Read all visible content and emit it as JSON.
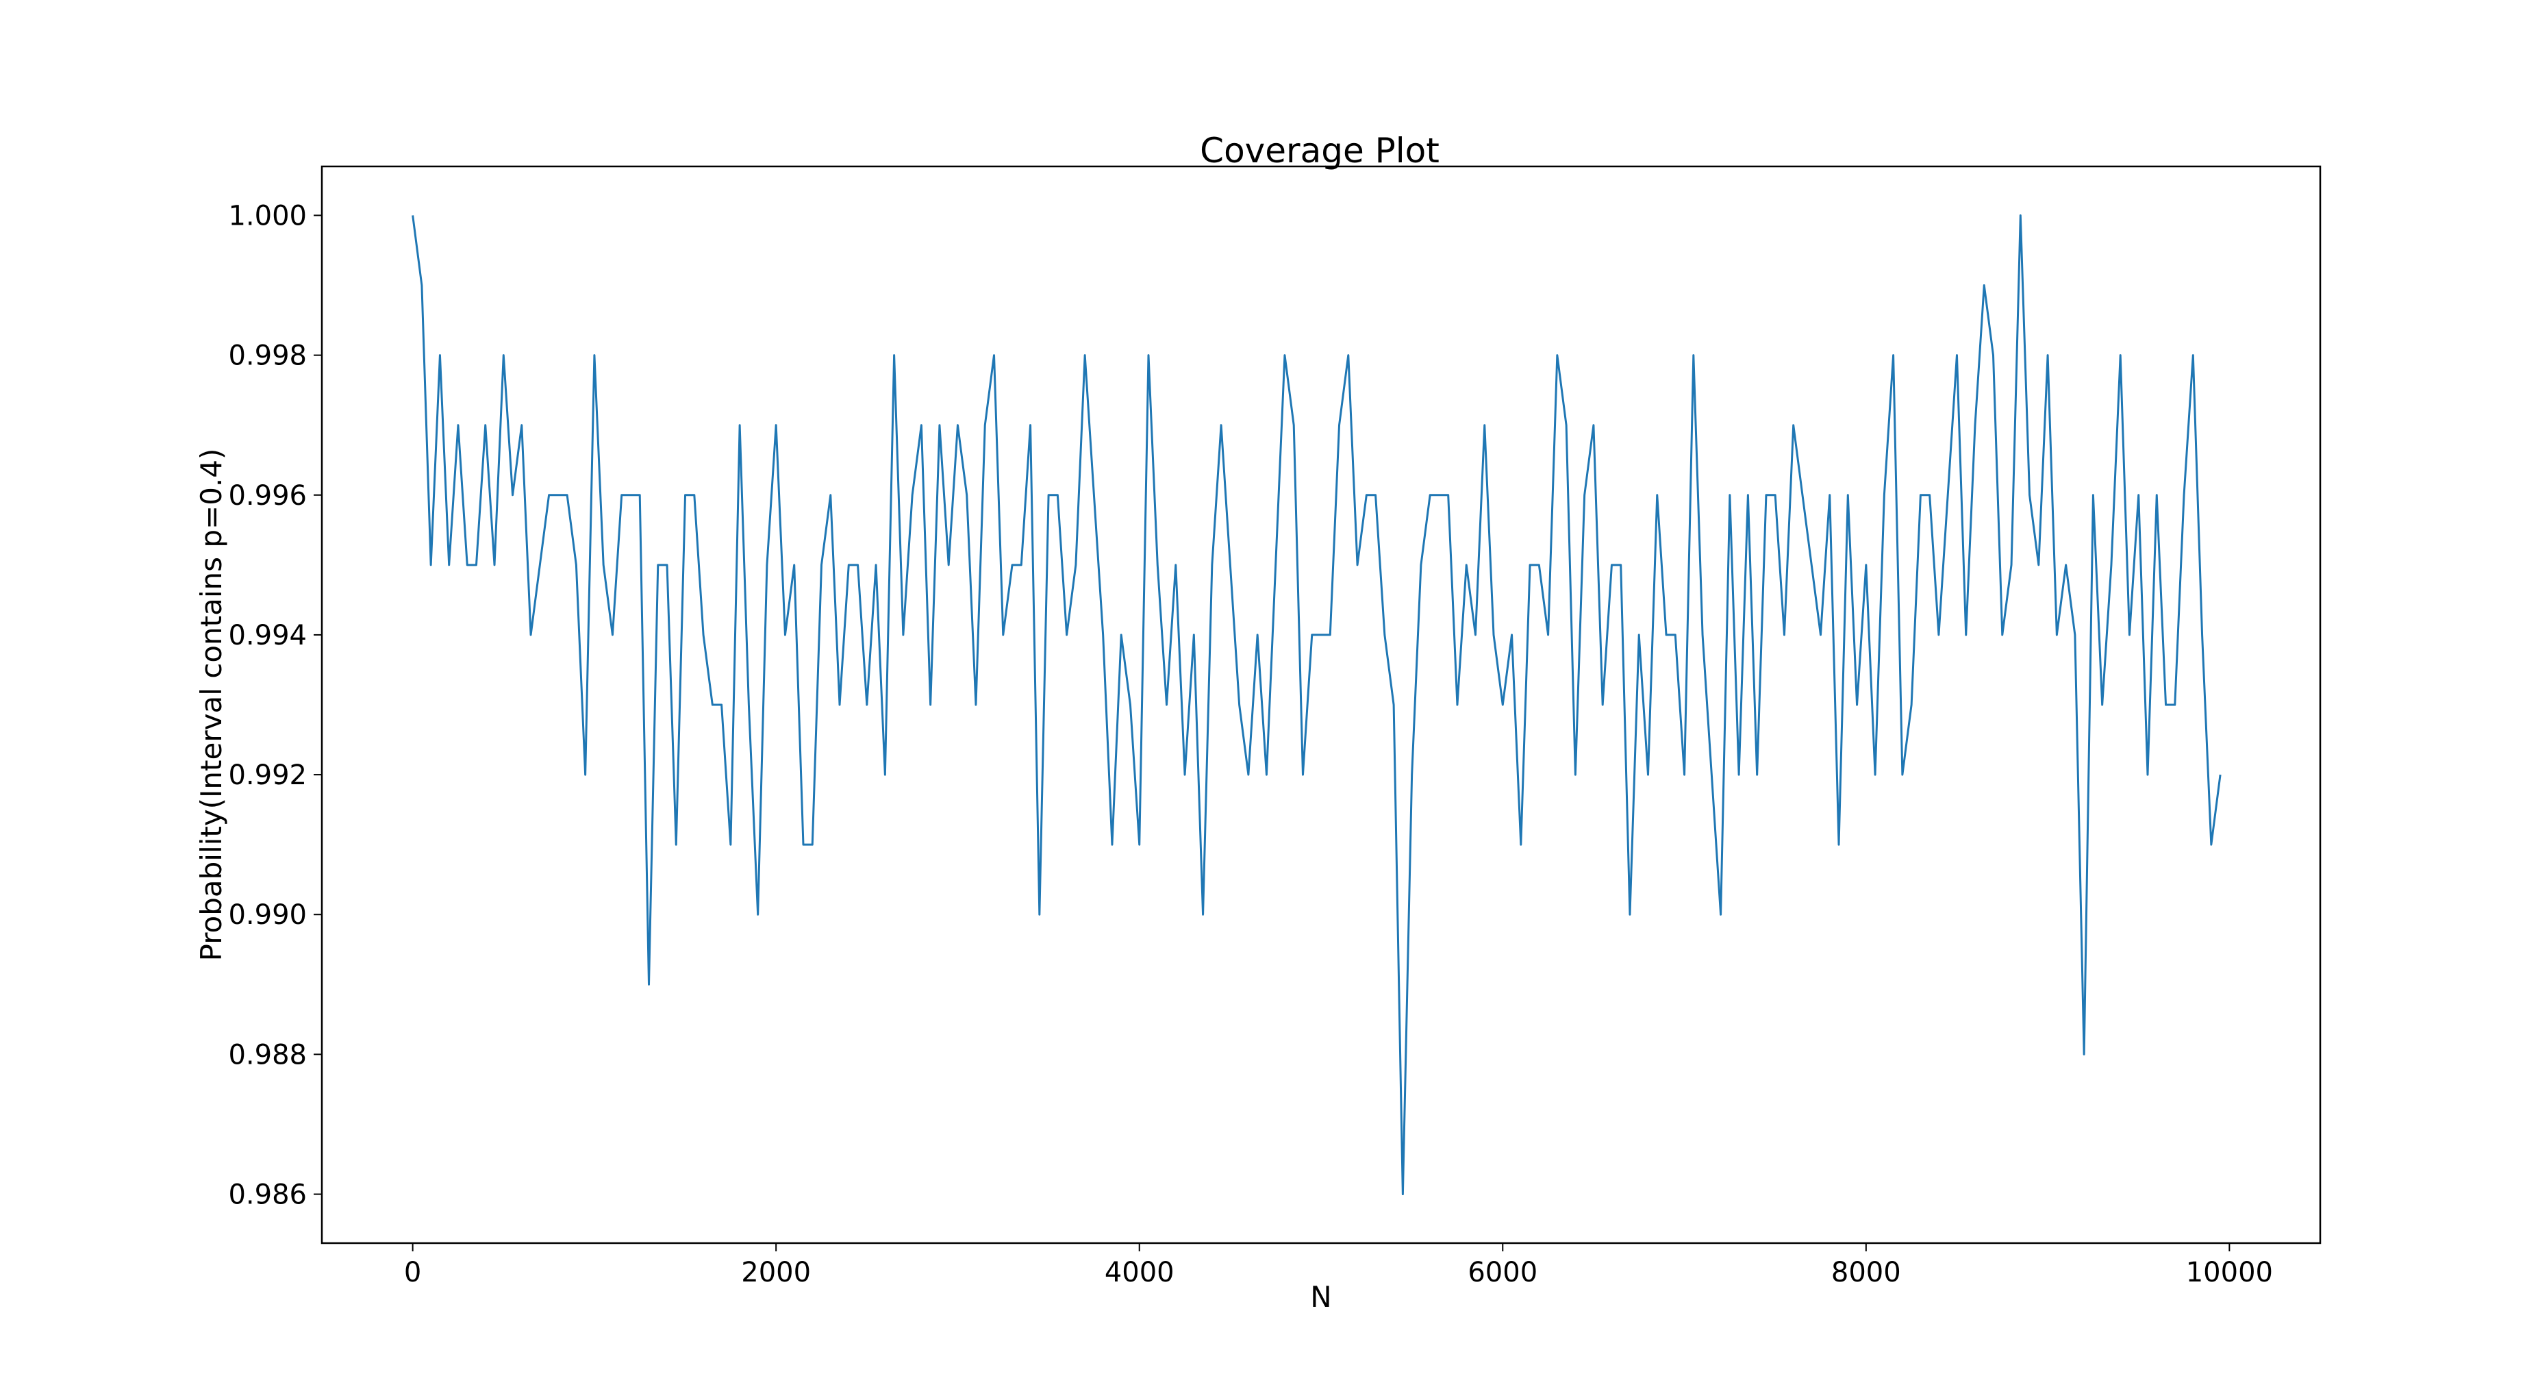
{
  "chart_data": {
    "type": "line",
    "title": "Coverage Plot",
    "xlabel": "N",
    "ylabel": "Probability(Interval contains p=0.4)",
    "xlim": [
      -500,
      10500
    ],
    "ylim": [
      0.9853,
      1.0007
    ],
    "xticks": [
      0,
      2000,
      4000,
      6000,
      8000,
      10000
    ],
    "xtick_labels": [
      "0",
      "2000",
      "4000",
      "6000",
      "8000",
      "10000"
    ],
    "yticks": [
      0.986,
      0.988,
      0.99,
      0.992,
      0.994,
      0.996,
      0.998,
      1.0
    ],
    "ytick_labels": [
      "0.986",
      "0.988",
      "0.990",
      "0.992",
      "0.994",
      "0.996",
      "0.998",
      "1.000"
    ],
    "grid": false,
    "legend": "none",
    "series": [
      {
        "color": "#1f77b4",
        "x": [
          0,
          50,
          100,
          150,
          200,
          250,
          300,
          350,
          400,
          450,
          500,
          550,
          600,
          650,
          700,
          750,
          800,
          850,
          900,
          950,
          1000,
          1050,
          1100,
          1150,
          1200,
          1250,
          1300,
          1350,
          1400,
          1450,
          1500,
          1550,
          1600,
          1650,
          1700,
          1750,
          1800,
          1850,
          1900,
          1950,
          2000,
          2050,
          2100,
          2150,
          2200,
          2250,
          2300,
          2350,
          2400,
          2450,
          2500,
          2550,
          2600,
          2650,
          2700,
          2750,
          2800,
          2850,
          2900,
          2950,
          3000,
          3050,
          3100,
          3150,
          3200,
          3250,
          3300,
          3350,
          3400,
          3450,
          3500,
          3550,
          3600,
          3650,
          3700,
          3750,
          3800,
          3850,
          3900,
          3950,
          4000,
          4050,
          4100,
          4150,
          4200,
          4250,
          4300,
          4350,
          4400,
          4450,
          4500,
          4550,
          4600,
          4650,
          4700,
          4750,
          4800,
          4850,
          4900,
          4950,
          5000,
          5050,
          5100,
          5150,
          5200,
          5250,
          5300,
          5350,
          5400,
          5450,
          5500,
          5550,
          5600,
          5650,
          5700,
          5750,
          5800,
          5850,
          5900,
          5950,
          6000,
          6050,
          6100,
          6150,
          6200,
          6250,
          6300,
          6350,
          6400,
          6450,
          6500,
          6550,
          6600,
          6650,
          6700,
          6750,
          6800,
          6850,
          6900,
          6950,
          7000,
          7050,
          7100,
          7150,
          7200,
          7250,
          7300,
          7350,
          7400,
          7450,
          7500,
          7550,
          7600,
          7650,
          7700,
          7750,
          7800,
          7850,
          7900,
          7950,
          8000,
          8050,
          8100,
          8150,
          8200,
          8250,
          8300,
          8350,
          8400,
          8450,
          8500,
          8550,
          8600,
          8650,
          8700,
          8750,
          8800,
          8850,
          8900,
          8950,
          9000,
          9050,
          9100,
          9150,
          9200,
          9250,
          9300,
          9350,
          9400,
          9450,
          9500,
          9550,
          9600,
          9650,
          9700,
          9750,
          9800,
          9850,
          9900,
          9950
        ],
        "y": [
          1.0,
          0.999,
          0.995,
          0.998,
          0.995,
          0.997,
          0.995,
          0.995,
          0.997,
          0.995,
          0.998,
          0.996,
          0.997,
          0.994,
          0.995,
          0.996,
          0.996,
          0.996,
          0.995,
          0.992,
          0.998,
          0.995,
          0.994,
          0.996,
          0.996,
          0.996,
          0.989,
          0.995,
          0.995,
          0.991,
          0.996,
          0.996,
          0.994,
          0.993,
          0.993,
          0.991,
          0.997,
          0.993,
          0.99,
          0.995,
          0.997,
          0.994,
          0.995,
          0.991,
          0.991,
          0.995,
          0.996,
          0.993,
          0.995,
          0.995,
          0.993,
          0.995,
          0.992,
          0.998,
          0.994,
          0.996,
          0.997,
          0.993,
          0.997,
          0.995,
          0.997,
          0.996,
          0.993,
          0.997,
          0.998,
          0.994,
          0.995,
          0.995,
          0.997,
          0.99,
          0.996,
          0.996,
          0.994,
          0.995,
          0.998,
          0.996,
          0.994,
          0.991,
          0.994,
          0.993,
          0.991,
          0.998,
          0.995,
          0.993,
          0.995,
          0.992,
          0.994,
          0.99,
          0.995,
          0.997,
          0.995,
          0.993,
          0.992,
          0.994,
          0.992,
          0.995,
          0.998,
          0.997,
          0.992,
          0.994,
          0.994,
          0.994,
          0.997,
          0.998,
          0.995,
          0.996,
          0.996,
          0.994,
          0.993,
          0.986,
          0.992,
          0.995,
          0.996,
          0.996,
          0.996,
          0.993,
          0.995,
          0.994,
          0.997,
          0.994,
          0.993,
          0.994,
          0.991,
          0.995,
          0.995,
          0.994,
          0.998,
          0.997,
          0.992,
          0.996,
          0.997,
          0.993,
          0.995,
          0.995,
          0.99,
          0.994,
          0.992,
          0.996,
          0.994,
          0.994,
          0.992,
          0.998,
          0.994,
          0.992,
          0.99,
          0.996,
          0.992,
          0.996,
          0.992,
          0.996,
          0.996,
          0.994,
          0.997,
          0.996,
          0.995,
          0.994,
          0.996,
          0.991,
          0.996,
          0.993,
          0.995,
          0.992,
          0.996,
          0.998,
          0.992,
          0.993,
          0.996,
          0.996,
          0.994,
          0.996,
          0.998,
          0.994,
          0.997,
          0.999,
          0.998,
          0.994,
          0.995,
          1.0,
          0.996,
          0.995,
          0.998,
          0.994,
          0.995,
          0.994,
          0.988,
          0.996,
          0.993,
          0.995,
          0.998,
          0.994,
          0.996,
          0.992,
          0.996,
          0.993,
          0.993,
          0.996,
          0.998,
          0.994,
          0.991,
          0.992
        ]
      }
    ]
  }
}
